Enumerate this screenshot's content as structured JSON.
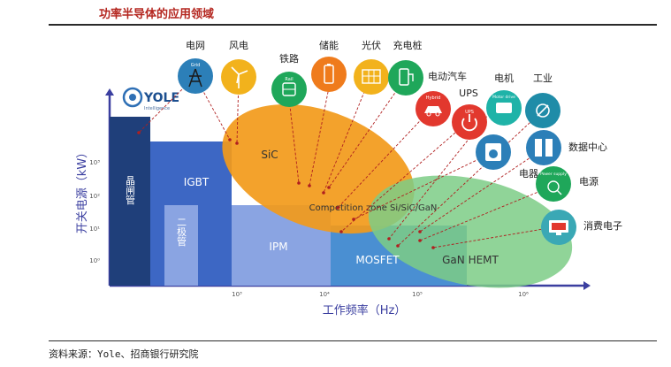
{
  "header": {
    "title": "功率半导体的应用领域"
  },
  "footer": {
    "source": "资料来源：Yole、招商银行研究院"
  },
  "logo": {
    "name": "YOLE",
    "tagline": "Intelligence"
  },
  "axes": {
    "y_label": "开关电源（kW）",
    "x_label": "工作频率（Hz）",
    "y_ticks": [
      "10³",
      "10²",
      "10¹",
      "10⁰"
    ],
    "x_ticks": [
      "10³",
      "10⁴",
      "10⁵",
      "10⁶"
    ]
  },
  "devices": {
    "thyristor": "晶闸管",
    "igbt": "IGBT",
    "diode": "二极管",
    "ipm": "IPM",
    "mosfet": "MOSFET",
    "gan_hemt": "GaN HEMT",
    "sic": "SiC",
    "competition": "Competition zone Si/SiC/GaN"
  },
  "applications": {
    "grid": {
      "label": "电网",
      "icon_text": "Grid"
    },
    "wind": {
      "label": "风电"
    },
    "rail": {
      "label": "铁路",
      "icon_text": "Rail"
    },
    "storage": {
      "label": "储能"
    },
    "solar": {
      "label": "光伏"
    },
    "charging": {
      "label": "充电桩"
    },
    "ev": {
      "label": "电动汽车",
      "icon_text": "Hybrid"
    },
    "ups": {
      "label": "UPS",
      "icon_text": "UPS"
    },
    "motor": {
      "label": "电机",
      "icon_text": "Motor drive"
    },
    "industry": {
      "label": "工业"
    },
    "appliance": {
      "label": "电器"
    },
    "datacenter": {
      "label": "数据中心"
    },
    "power": {
      "label": "电源",
      "icon_text": "Power supply"
    },
    "consumer": {
      "label": "消费电子"
    }
  },
  "colors": {
    "title": "#b4261f",
    "thyristor": "#1f3f7a",
    "igbt": "#3d67c4",
    "ipm": "#8aa4e2",
    "mosfet": "#4a8fd2",
    "sic": "#f29a1a",
    "gan": "#7dcc86"
  }
}
